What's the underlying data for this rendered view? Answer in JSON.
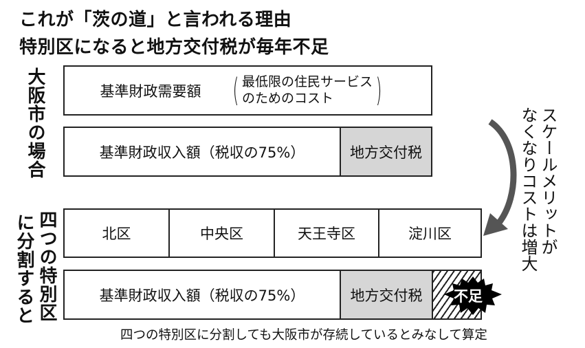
{
  "title": {
    "line1": "これが「茨の道」と言われる理由",
    "line2": "特別区になると地方交付税が毎年不足"
  },
  "osaka_city": {
    "label": "大阪市の場合",
    "demand_box": {
      "label": "基準財政需要額",
      "note_line1": "最低限の住民サービス",
      "note_line2": "のためのコスト"
    },
    "revenue_box": {
      "label": "基準財政収入額（税収の75%）",
      "tax_label": "地方交付税"
    }
  },
  "special_wards": {
    "label_col1": "四つの特別区",
    "label_col2": "に分割すると",
    "wards": [
      "北区",
      "中央区",
      "天王寺区",
      "淀川区"
    ],
    "revenue_box": {
      "label": "基準財政収入額（税収の75%）",
      "tax_label": "地方交付税",
      "shortfall_label": "不足"
    }
  },
  "side_note": {
    "col1": "スケールメリットが",
    "col2": "なくなりコストは増大"
  },
  "caption": "四つの特別区に分割しても大阪市が存続しているとみなして算定",
  "colors": {
    "tax_fill": "#d6d6d6",
    "arrow": "#555555",
    "burst": "#000000"
  }
}
